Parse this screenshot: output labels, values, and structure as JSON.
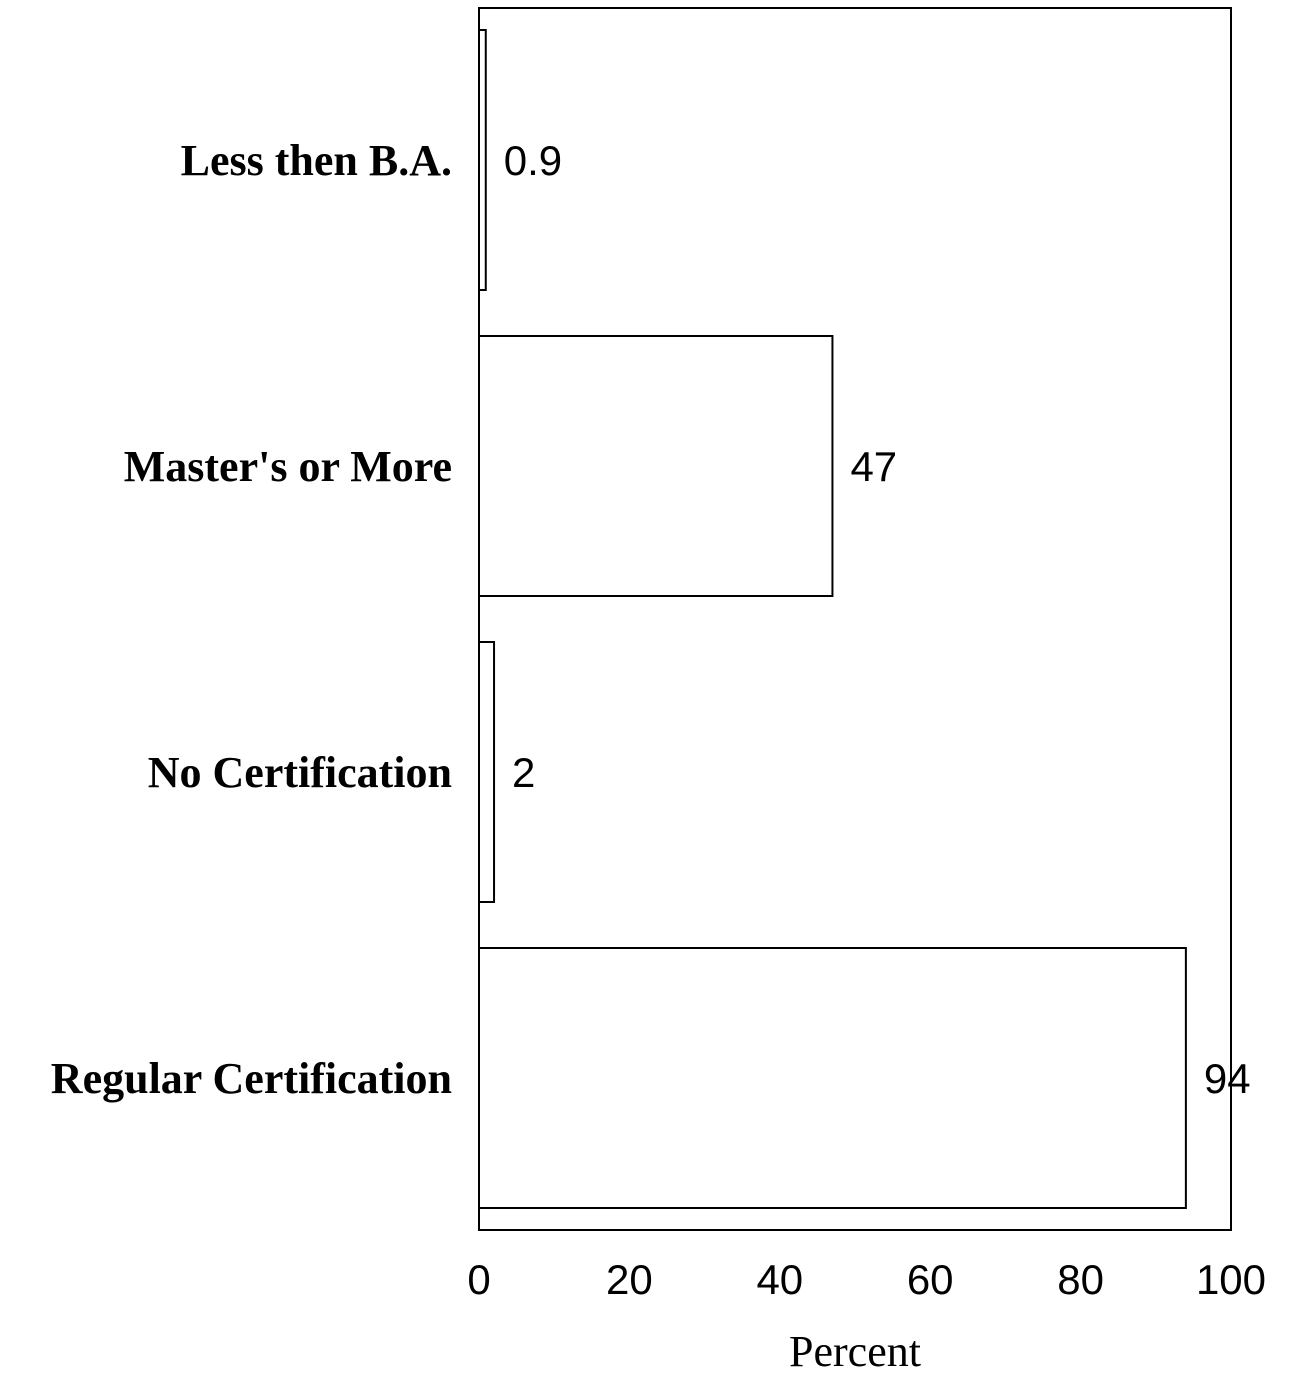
{
  "chart_data": {
    "type": "bar",
    "orientation": "horizontal",
    "categories": [
      "Less then B.A.",
      "Master's or More",
      "No Certification",
      "Regular Certification"
    ],
    "values": [
      0.9,
      47,
      2,
      94
    ],
    "data_labels": [
      "0.9",
      "47",
      "2",
      "94"
    ],
    "xlabel": "Percent",
    "ylabel": "",
    "xlim": [
      0,
      100
    ],
    "xticks": [
      "0",
      "20",
      "40",
      "60",
      "80",
      "100"
    ],
    "grid": false,
    "legend": false,
    "bar_fill": "#ffffff",
    "bar_stroke": "#000000"
  }
}
